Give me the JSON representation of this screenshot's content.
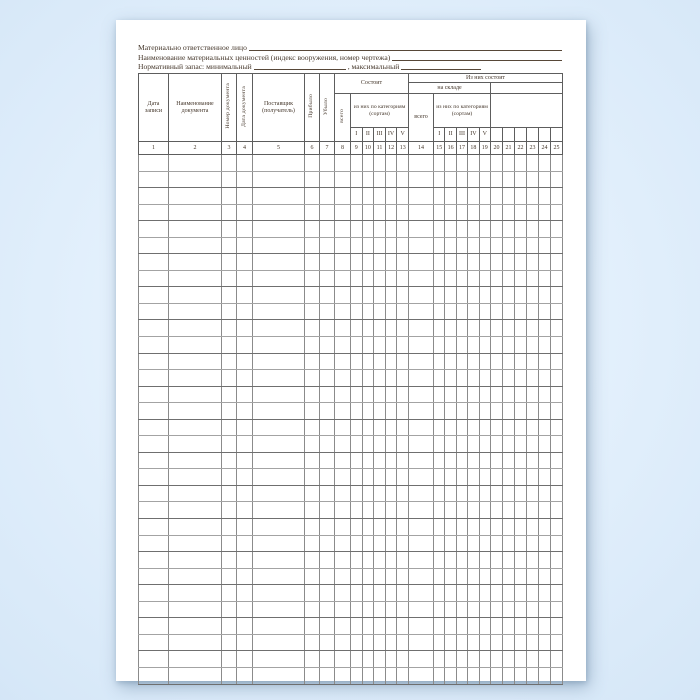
{
  "form": {
    "lines": [
      {
        "label": "Материально ответственное лицо"
      },
      {
        "label": "Наименование материальных ценностей (индекс вооружения, номер чертежа)"
      },
      {
        "label": "Нормативный запас: минимальный",
        "label2": ", максимальный"
      }
    ]
  },
  "table": {
    "columns": {
      "record_date": "Дата записи",
      "document_name": "Наименование документа",
      "document_number": "Номер документа",
      "document_date": "Дата документа",
      "supplier": "Поставщик (получатель)",
      "arrived": "Прибыло",
      "departed": "Убыло"
    },
    "groups": {
      "consists": "Состоит",
      "of_them_consists": "Из них состоит",
      "warehouse": "на складе",
      "total": "всего",
      "by_categories": "из них по категориям (сортам)"
    },
    "category_labels": [
      "I",
      "II",
      "III",
      "IV",
      "V"
    ],
    "column_numbers": [
      1,
      2,
      3,
      4,
      5,
      6,
      7,
      8,
      9,
      10,
      11,
      12,
      13,
      14,
      15,
      16,
      17,
      18,
      19,
      20,
      21,
      22,
      23,
      24,
      25
    ],
    "empty_row_count": 32
  }
}
